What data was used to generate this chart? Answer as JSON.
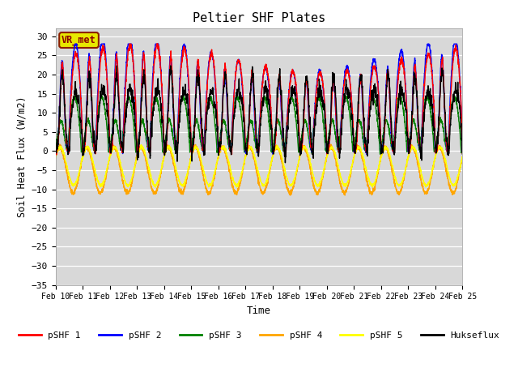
{
  "title": "Peltier SHF Plates",
  "xlabel": "Time",
  "ylabel": "Soil Heat Flux (W/m2)",
  "ylim": [
    -35,
    32
  ],
  "yticks": [
    -35,
    -30,
    -25,
    -20,
    -15,
    -10,
    -5,
    0,
    5,
    10,
    15,
    20,
    25,
    30
  ],
  "xlim": [
    0,
    15
  ],
  "xtick_labels": [
    "Feb 10",
    "Feb 11",
    "Feb 12",
    "Feb 13",
    "Feb 14",
    "Feb 15",
    "Feb 16",
    "Feb 17",
    "Feb 18",
    "Feb 19",
    "Feb 20",
    "Feb 21",
    "Feb 22",
    "Feb 23",
    "Feb 24",
    "Feb 25"
  ],
  "series_colors": [
    "red",
    "blue",
    "green",
    "orange",
    "yellow",
    "black"
  ],
  "series_names": [
    "pSHF 1",
    "pSHF 2",
    "pSHF 3",
    "pSHF 4",
    "pSHF 5",
    "Hukseflux"
  ],
  "bg_color": "#d8d8d8",
  "annotation_text": "VR_met",
  "annotation_box_color": "#e8e800",
  "annotation_box_edge": "#8b2000"
}
